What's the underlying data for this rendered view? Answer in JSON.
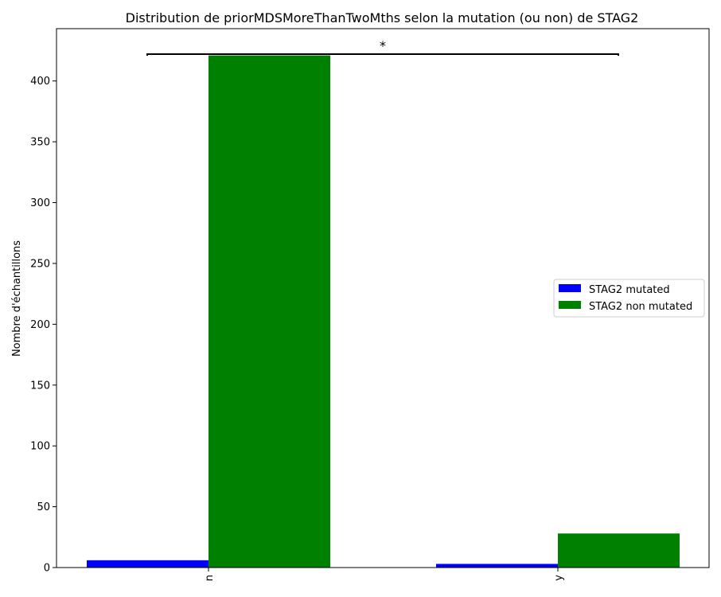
{
  "chart_data": {
    "type": "bar",
    "title": "Distribution de priorMDSMoreThanTwoMths selon la mutation (ou non) de STAG2",
    "xlabel": "",
    "ylabel": "Nombre d'échantillons",
    "categories": [
      "n",
      "y"
    ],
    "series": [
      {
        "name": "STAG2 mutated",
        "color": "#0000ff",
        "values": [
          6,
          3
        ]
      },
      {
        "name": "STAG2 non mutated",
        "color": "#008000",
        "values": [
          421,
          28
        ]
      }
    ],
    "ylim": [
      0,
      443
    ],
    "yticks": [
      0,
      50,
      100,
      150,
      200,
      250,
      300,
      350,
      400
    ],
    "grid": false,
    "legend_position": "center-right",
    "annotation": {
      "text": "*",
      "type": "significance-bracket",
      "from_category": "n",
      "to_category": "y"
    }
  }
}
